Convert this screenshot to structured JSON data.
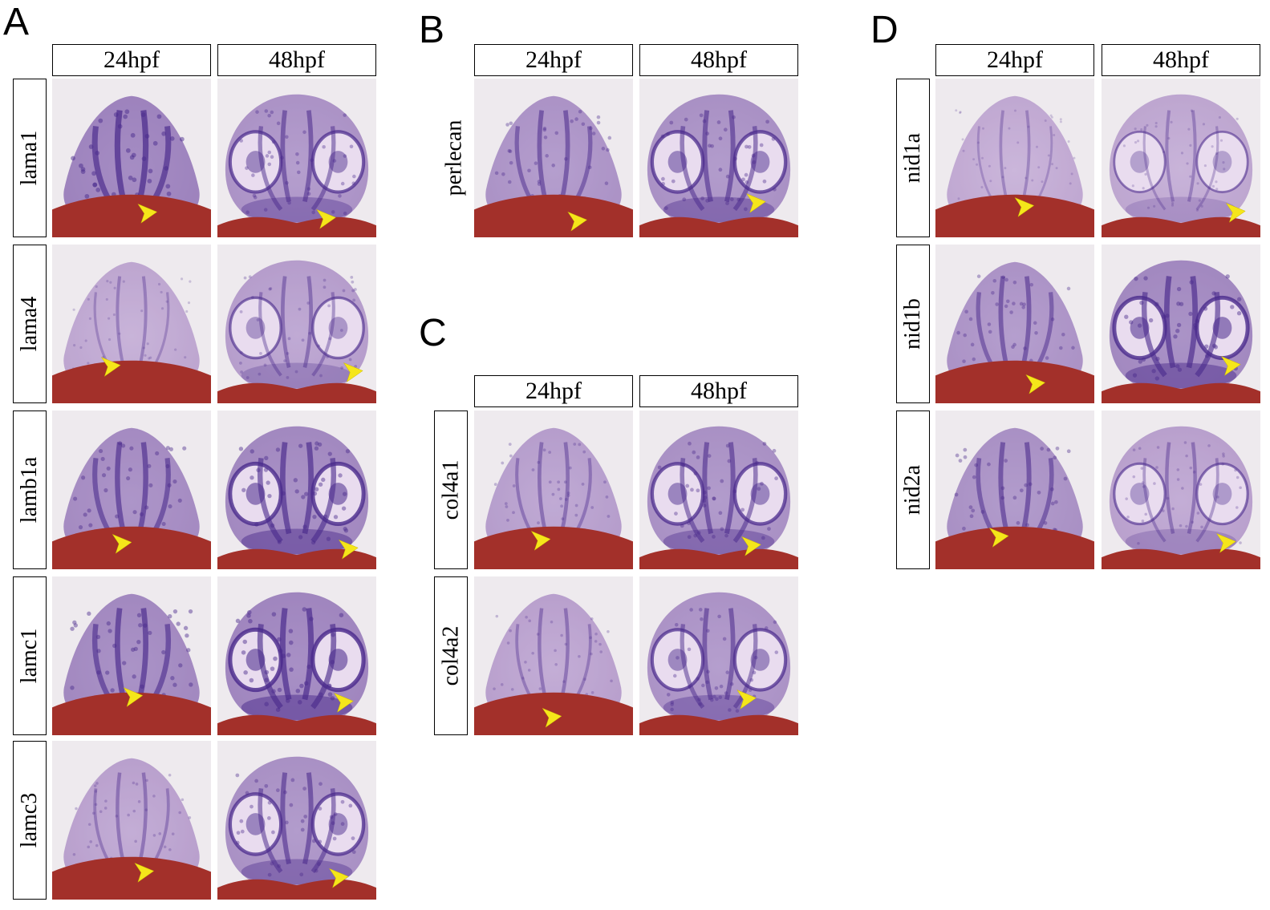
{
  "panels": {
    "A": {
      "letter": "A",
      "stages": [
        "24hpf",
        "48hpf"
      ],
      "genes": [
        {
          "label": "lama1",
          "stain_24": 0.85,
          "stain_48": 0.55
        },
        {
          "label": "lama4",
          "stain_24": 0.2,
          "stain_48": 0.35
        },
        {
          "label": "lamb1a",
          "stain_24": 0.7,
          "stain_48": 0.75
        },
        {
          "label": "lamc1",
          "stain_24": 0.75,
          "stain_48": 0.8
        },
        {
          "label": "lamc3",
          "stain_24": 0.3,
          "stain_48": 0.6
        }
      ]
    },
    "B": {
      "letter": "B",
      "stages": [
        "24hpf",
        "48hpf"
      ],
      "genes": [
        {
          "label": "perlecan",
          "stain_24": 0.55,
          "stain_48": 0.6
        }
      ]
    },
    "C": {
      "letter": "C",
      "stages": [
        "24hpf",
        "48hpf"
      ],
      "genes": [
        {
          "label": "col4a1",
          "stain_24": 0.35,
          "stain_48": 0.6
        },
        {
          "label": "col4a2",
          "stain_24": 0.3,
          "stain_48": 0.55
        }
      ]
    },
    "D": {
      "letter": "D",
      "stages": [
        "24hpf",
        "48hpf"
      ],
      "genes": [
        {
          "label": "nid1a",
          "stain_24": 0.15,
          "stain_48": 0.2
        },
        {
          "label": "nid1b",
          "stain_24": 0.55,
          "stain_48": 0.75
        },
        {
          "label": "nid2a",
          "stain_24": 0.6,
          "stain_48": 0.3
        }
      ]
    }
  },
  "colors": {
    "stain": "#4a2a8c",
    "tissue": "#e6d4ec",
    "yolk": "#a3302a",
    "arrowhead": "#f5e61a",
    "background": "#eeeaee"
  }
}
